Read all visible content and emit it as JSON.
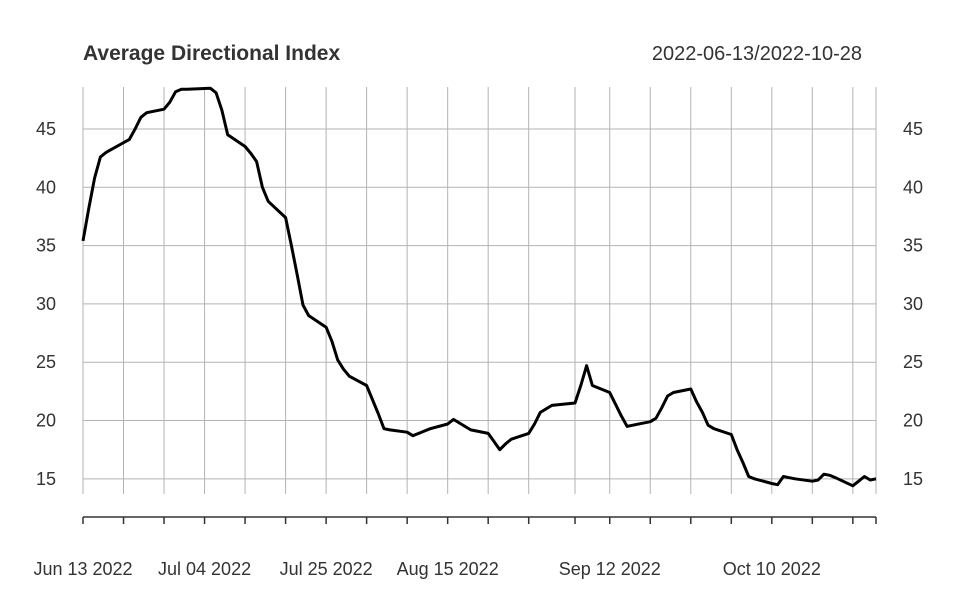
{
  "chart_data": {
    "type": "line",
    "title": "Average Directional Index",
    "date_range": "2022-06-13/2022-10-28",
    "xlabel": "",
    "ylabel": "",
    "ylim": [
      13.7,
      48.6
    ],
    "y_ticks": [
      15,
      20,
      25,
      30,
      35,
      40,
      45
    ],
    "x_tick_labels": [
      "Jun 13 2022",
      "Jul 04 2022",
      "Jul 25 2022",
      "Aug 15 2022",
      "Sep 12 2022",
      "Oct 10 2022"
    ],
    "x_label_dates": [
      "2022-06-13",
      "2022-07-04",
      "2022-07-25",
      "2022-08-15",
      "2022-09-12",
      "2022-10-10"
    ],
    "x_grid_dates": [
      "2022-06-13",
      "2022-06-20",
      "2022-06-27",
      "2022-07-04",
      "2022-07-11",
      "2022-07-18",
      "2022-07-25",
      "2022-08-01",
      "2022-08-08",
      "2022-08-15",
      "2022-08-22",
      "2022-08-29",
      "2022-09-06",
      "2022-09-12",
      "2022-09-19",
      "2022-09-26",
      "2022-10-03",
      "2022-10-10",
      "2022-10-17",
      "2022-10-24",
      "2022-10-28"
    ],
    "grid": true,
    "series": [
      {
        "name": "",
        "color": "#000000",
        "x": [
          "2022-06-13",
          "2022-06-14",
          "2022-06-15",
          "2022-06-16",
          "2022-06-17",
          "2022-06-21",
          "2022-06-22",
          "2022-06-23",
          "2022-06-24",
          "2022-06-27",
          "2022-06-28",
          "2022-06-29",
          "2022-06-30",
          "2022-07-01",
          "2022-07-05",
          "2022-07-06",
          "2022-07-07",
          "2022-07-08",
          "2022-07-11",
          "2022-07-12",
          "2022-07-13",
          "2022-07-14",
          "2022-07-15",
          "2022-07-18",
          "2022-07-19",
          "2022-07-20",
          "2022-07-21",
          "2022-07-22",
          "2022-07-25",
          "2022-07-26",
          "2022-07-27",
          "2022-07-28",
          "2022-07-29",
          "2022-08-01",
          "2022-08-02",
          "2022-08-03",
          "2022-08-04",
          "2022-08-05",
          "2022-08-08",
          "2022-08-09",
          "2022-08-10",
          "2022-08-11",
          "2022-08-12",
          "2022-08-15",
          "2022-08-16",
          "2022-08-17",
          "2022-08-18",
          "2022-08-19",
          "2022-08-22",
          "2022-08-23",
          "2022-08-24",
          "2022-08-25",
          "2022-08-26",
          "2022-08-29",
          "2022-08-30",
          "2022-08-31",
          "2022-09-01",
          "2022-09-02",
          "2022-09-06",
          "2022-09-07",
          "2022-09-08",
          "2022-09-09",
          "2022-09-12",
          "2022-09-13",
          "2022-09-14",
          "2022-09-15",
          "2022-09-16",
          "2022-09-19",
          "2022-09-20",
          "2022-09-21",
          "2022-09-22",
          "2022-09-23",
          "2022-09-26",
          "2022-09-27",
          "2022-09-28",
          "2022-09-29",
          "2022-09-30",
          "2022-10-03",
          "2022-10-04",
          "2022-10-05",
          "2022-10-06",
          "2022-10-07",
          "2022-10-10",
          "2022-10-11",
          "2022-10-12",
          "2022-10-13",
          "2022-10-14",
          "2022-10-17",
          "2022-10-18",
          "2022-10-19",
          "2022-10-20",
          "2022-10-21",
          "2022-10-24",
          "2022-10-25",
          "2022-10-26",
          "2022-10-27",
          "2022-10-28"
        ],
        "y": [
          35.4,
          38.2,
          40.8,
          42.6,
          43.0,
          44.1,
          45.0,
          46.0,
          46.4,
          46.7,
          47.3,
          48.2,
          48.4,
          48.4,
          48.5,
          48.1,
          46.6,
          44.5,
          43.5,
          42.9,
          42.2,
          40.0,
          38.8,
          37.4,
          35.0,
          32.5,
          29.9,
          29.0,
          28.0,
          26.8,
          25.2,
          24.4,
          23.8,
          23.0,
          21.8,
          20.6,
          19.3,
          19.2,
          19.0,
          18.7,
          18.9,
          19.1,
          19.3,
          19.7,
          20.1,
          19.8,
          19.5,
          19.2,
          18.9,
          18.2,
          17.5,
          18.0,
          18.4,
          18.9,
          19.7,
          20.7,
          21.0,
          21.3,
          21.5,
          23.0,
          24.7,
          23.0,
          22.4,
          21.4,
          20.4,
          19.5,
          19.6,
          19.9,
          20.2,
          21.1,
          22.1,
          22.4,
          22.7,
          21.6,
          20.7,
          19.6,
          19.3,
          18.8,
          17.5,
          16.4,
          15.2,
          15.0,
          14.6,
          14.5,
          15.2,
          15.1,
          15.0,
          14.8,
          14.9,
          15.4,
          15.3,
          15.1,
          14.4,
          14.8,
          15.2,
          14.9,
          15.0
        ]
      }
    ]
  }
}
